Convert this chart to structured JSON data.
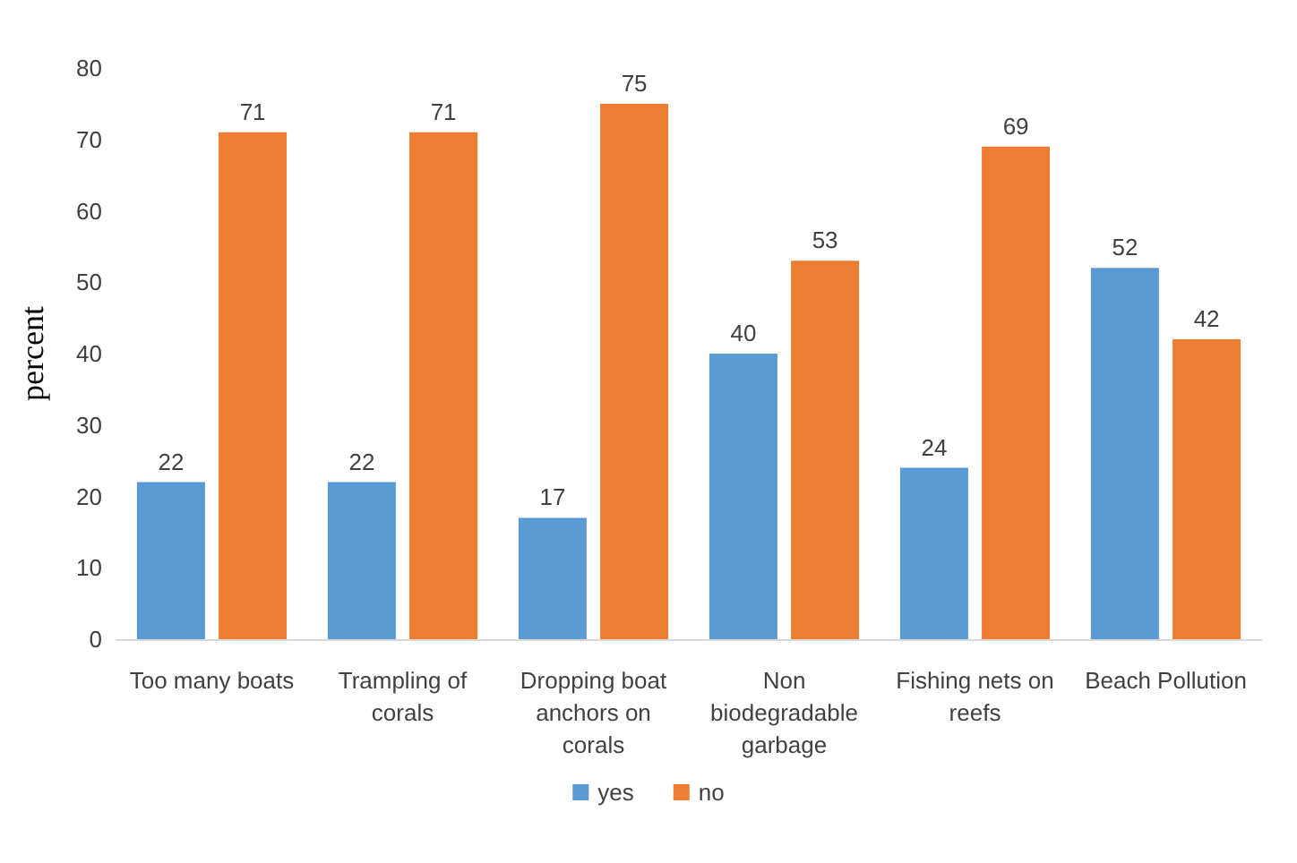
{
  "chart_data": {
    "type": "bar",
    "ylabel": "percent",
    "categories": [
      "Too many boats",
      "Trampling of corals",
      "Dropping boat anchors on corals",
      "Non biodegradable garbage",
      "Fishing nets on reefs",
      "Beach Pollution"
    ],
    "series": [
      {
        "name": "yes",
        "color": "#5b9bd5",
        "values": [
          22,
          22,
          17,
          40,
          24,
          52
        ]
      },
      {
        "name": "no",
        "color": "#ed7d31",
        "values": [
          71,
          71,
          75,
          53,
          69,
          42
        ]
      }
    ],
    "ylim": [
      0,
      80
    ],
    "yticks": [
      0,
      10,
      20,
      30,
      40,
      50,
      60,
      70,
      80
    ],
    "grid": false,
    "legend": "bottom",
    "data_labels": true
  }
}
